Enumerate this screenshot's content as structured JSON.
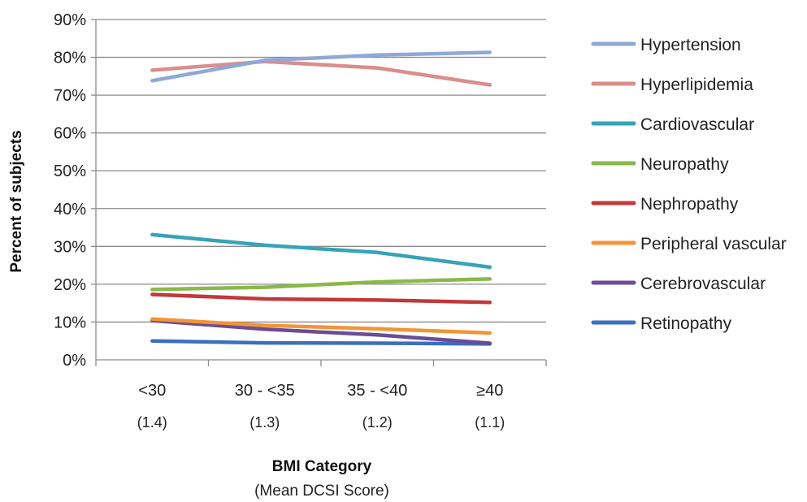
{
  "chart_data": {
    "type": "line",
    "xlabel": "BMI Category",
    "xlabel_sub": "(Mean DCSI Score)",
    "ylabel": "Percent of subjects",
    "categories": [
      "<30",
      "30 - <35",
      "35 - <40",
      "≥40"
    ],
    "category_sublabels": [
      "(1.4)",
      "(1.3)",
      "(1.2)",
      "(1.1)"
    ],
    "ylim": [
      0,
      90
    ],
    "yticks": [
      "0%",
      "10%",
      "20%",
      "30%",
      "40%",
      "50%",
      "60%",
      "70%",
      "80%",
      "90%"
    ],
    "grid": true,
    "legend_position": "right",
    "series": [
      {
        "name": "Hypertension",
        "color": "#8fa8d8",
        "values": [
          73.8,
          79.2,
          80.6,
          81.3
        ]
      },
      {
        "name": "Hyperlipidemia",
        "color": "#d98e8c",
        "values": [
          76.6,
          78.9,
          77.2,
          72.7
        ]
      },
      {
        "name": "Cardiovascular",
        "color": "#35a4b8",
        "values": [
          33.1,
          30.3,
          28.4,
          24.5
        ]
      },
      {
        "name": "Neuropathy",
        "color": "#8ab94a",
        "values": [
          18.6,
          19.2,
          20.6,
          21.4
        ]
      },
      {
        "name": "Nephropathy",
        "color": "#c0393b",
        "values": [
          17.3,
          16.1,
          15.8,
          15.2
        ]
      },
      {
        "name": "Peripheral vascular",
        "color": "#f39436",
        "values": [
          10.8,
          9.1,
          8.2,
          7.1
        ]
      },
      {
        "name": "Cerebrovascular",
        "color": "#6b4c96",
        "values": [
          10.4,
          8.1,
          6.6,
          4.4
        ]
      },
      {
        "name": "Retinopathy",
        "color": "#3a6fbf",
        "values": [
          5.0,
          4.5,
          4.4,
          4.2
        ]
      }
    ]
  }
}
